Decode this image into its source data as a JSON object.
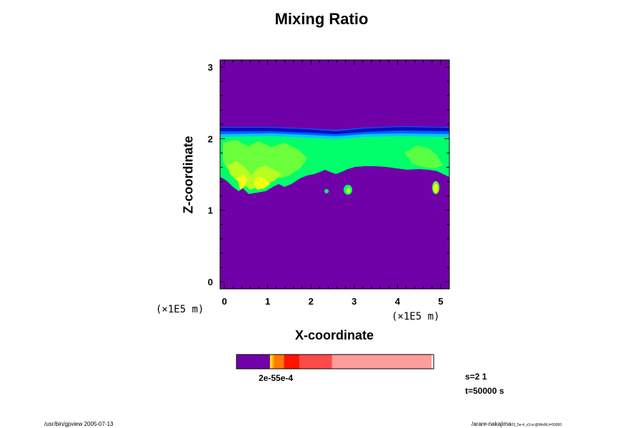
{
  "chart_data": {
    "type": "heatmap",
    "title": "Mixing Ratio",
    "xlabel": "X-coordinate",
    "ylabel": "Z-coordinate",
    "x_unit": "(×1E5 m)",
    "y_unit": "(×1E5 m)",
    "xlim": [
      -0.1,
      5.2
    ],
    "ylim": [
      -0.1,
      3.1
    ],
    "x_ticks": [
      "0",
      "1",
      "2",
      "3",
      "4",
      "5"
    ],
    "y_ticks": [
      "0",
      "1",
      "2",
      "3"
    ],
    "x_tick_values": [
      0,
      1,
      2,
      3,
      4,
      5
    ],
    "y_tick_values": [
      0,
      1,
      2,
      3
    ],
    "background_color": "#7000a8",
    "colorbar": {
      "label": "2e-55e-4",
      "segments": [
        {
          "color": "#7000a8",
          "fraction": 0.17
        },
        {
          "color": "#ffe000",
          "fraction": 0.01
        },
        {
          "color": "#ffb000",
          "fraction": 0.01
        },
        {
          "color": "#ff7a00",
          "fraction": 0.05
        },
        {
          "color": "#ff1400",
          "fraction": 0.08
        },
        {
          "color": "#ff4a4a",
          "fraction": 0.165
        },
        {
          "color": "#ff9c9c",
          "fraction": 0.505
        }
      ]
    }
  },
  "info": {
    "s_label": "s=2 1",
    "t_label": "t=50000 s"
  },
  "footer": {
    "left": "/usr/bin/gpview 2005-07-13",
    "right_main": "/arare-nakajima",
    "right_sub": "03_5e-4_v3.nc@MixRt,t=50000"
  }
}
